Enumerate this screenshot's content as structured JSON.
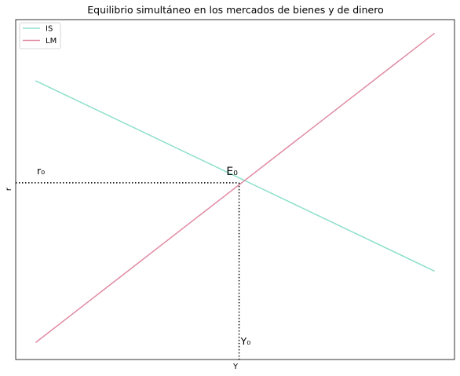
{
  "chart_data": {
    "type": "line",
    "title": "Equilibrio simultáneo en los mercados de bienes y de dinero",
    "xlabel": "Y",
    "ylabel": "r",
    "xlim": [
      0,
      11
    ],
    "ylim": [
      0,
      10
    ],
    "grid": false,
    "xticks": [],
    "yticks": [],
    "legend": {
      "position": "top-left"
    },
    "series": [
      {
        "name": "IS",
        "color": "#8ddfcb",
        "x": [
          0.5,
          10.5
        ],
        "y": [
          8.2,
          2.6
        ]
      },
      {
        "name": "LM",
        "color": "#e08ca4",
        "x": [
          0.5,
          10.5
        ],
        "y": [
          0.5,
          9.6
        ]
      }
    ],
    "equilibrium": {
      "x": 5.6,
      "y": 5.2,
      "label": "E₀"
    },
    "annotations": {
      "r_label": "r₀",
      "y_label": "Y₀"
    }
  }
}
